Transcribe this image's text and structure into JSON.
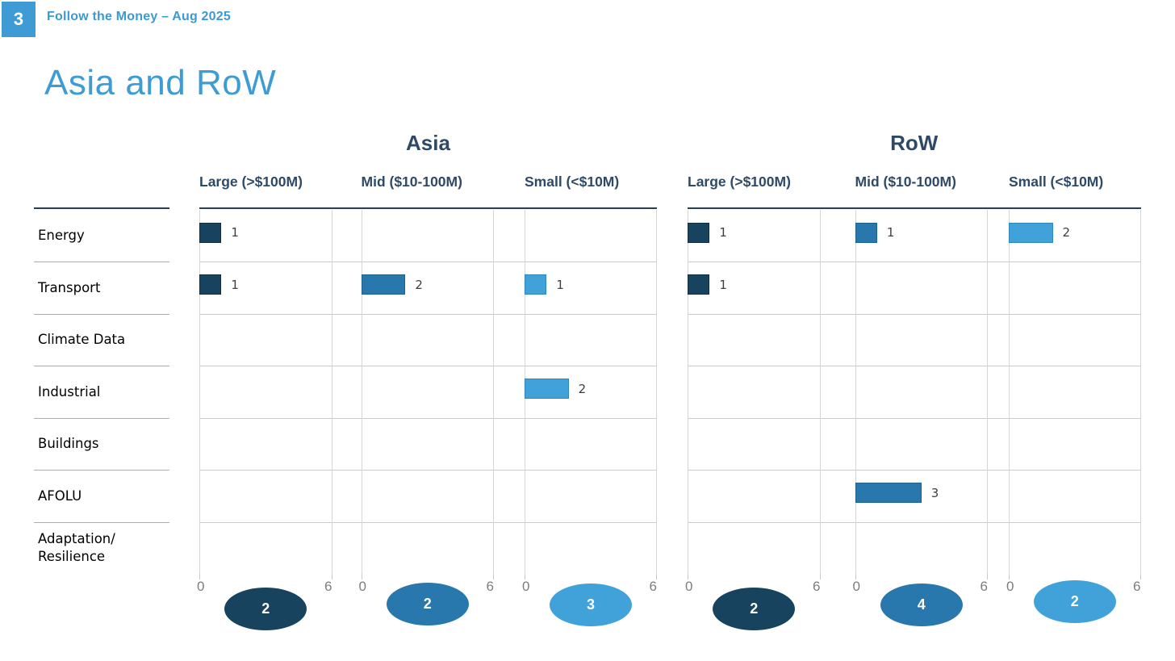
{
  "page": {
    "page_number": "3",
    "header": "Follow the Money – Aug 2025",
    "title": "Asia and RoW"
  },
  "colors": {
    "accent_blue": "#3e9cd4",
    "heading_navy": "#2e4a66",
    "large_bucket": "#17435e",
    "mid_bucket": "#2878ae",
    "small_bucket": "#41a2da",
    "grid_line": "#d6d6d6",
    "axis_label_gray": "#7d7d7d"
  },
  "chart_data": {
    "type": "bar",
    "orientation": "horizontal",
    "title": "Asia and RoW",
    "categories": [
      "Energy",
      "Transport",
      "Climate Data",
      "Industrial",
      "Buildings",
      "AFOLU",
      "Adaptation/\nResilience"
    ],
    "x_axis": {
      "min": 0,
      "max": 6,
      "tick_labels": [
        "0",
        "6"
      ],
      "grid": true
    },
    "groups": [
      {
        "name": "Asia",
        "columns": [
          {
            "label": "Large (>$100M)",
            "color": "#17435e",
            "border": "#102f43",
            "values": [
              1,
              1,
              0,
              0,
              0,
              0,
              0
            ],
            "total": 2
          },
          {
            "label": "Mid ($10-100M)",
            "color": "#2878ae",
            "border": "#1d628f",
            "values": [
              0,
              2,
              0,
              0,
              0,
              0,
              0
            ],
            "total": 2
          },
          {
            "label": "Small (<$10M)",
            "color": "#41a2da",
            "border": "#2f86bd",
            "values": [
              0,
              1,
              0,
              2,
              0,
              0,
              0
            ],
            "total": 3
          }
        ]
      },
      {
        "name": "RoW",
        "columns": [
          {
            "label": "Large (>$100M)",
            "color": "#17435e",
            "border": "#102f43",
            "values": [
              1,
              1,
              0,
              0,
              0,
              0,
              0
            ],
            "total": 2
          },
          {
            "label": "Mid ($10-100M)",
            "color": "#2878ae",
            "border": "#1d628f",
            "values": [
              1,
              0,
              0,
              0,
              0,
              3,
              0
            ],
            "total": 4
          },
          {
            "label": "Small (<$10M)",
            "color": "#41a2da",
            "border": "#2f86bd",
            "values": [
              2,
              0,
              0,
              0,
              0,
              0,
              0
            ],
            "total": 2
          }
        ]
      }
    ]
  }
}
